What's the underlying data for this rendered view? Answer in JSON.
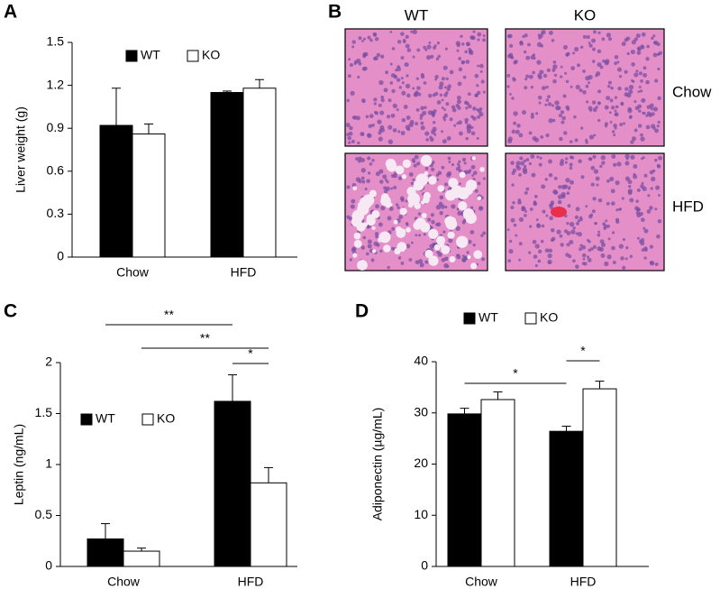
{
  "chart_data": [
    {
      "type": "bar",
      "panel": "A",
      "ylabel": "Liver weight (g)",
      "categories": [
        "Chow",
        "HFD"
      ],
      "series": [
        {
          "name": "WT",
          "color": "#000000",
          "values": [
            0.92,
            1.15
          ],
          "errors": [
            0.26,
            0.01
          ]
        },
        {
          "name": "KO",
          "color": "#ffffff",
          "values": [
            0.86,
            1.18
          ],
          "errors": [
            0.07,
            0.06
          ]
        }
      ],
      "ylim": [
        0,
        1.5
      ],
      "yticks": [
        0,
        0.3,
        0.6,
        0.9,
        1.2,
        1.5
      ],
      "legend": "top"
    },
    {
      "type": "bar",
      "panel": "C",
      "ylabel": "Leptin (ng/mL)",
      "categories": [
        "Chow",
        "HFD"
      ],
      "series": [
        {
          "name": "WT",
          "color": "#000000",
          "values": [
            0.27,
            1.62
          ],
          "errors": [
            0.15,
            0.26
          ]
        },
        {
          "name": "KO",
          "color": "#ffffff",
          "values": [
            0.15,
            0.82
          ],
          "errors": [
            0.03,
            0.15
          ]
        }
      ],
      "ylim": [
        0,
        2
      ],
      "yticks": [
        0,
        0.5,
        1,
        1.5,
        2
      ],
      "legend": "center-left",
      "annotations": [
        {
          "label": "**"
        },
        {
          "label": "**"
        },
        {
          "label": "*"
        }
      ]
    },
    {
      "type": "bar",
      "panel": "D",
      "ylabel": "Adiponectin (µg/mL)",
      "categories": [
        "Chow",
        "HFD"
      ],
      "series": [
        {
          "name": "WT",
          "color": "#000000",
          "values": [
            29.8,
            26.4
          ],
          "errors": [
            1.1,
            1.0
          ]
        },
        {
          "name": "KO",
          "color": "#ffffff",
          "values": [
            32.6,
            34.7
          ],
          "errors": [
            1.5,
            1.5
          ]
        }
      ],
      "ylim": [
        0,
        40
      ],
      "yticks": [
        0,
        10,
        20,
        30,
        40
      ],
      "legend": "top",
      "annotations": [
        {
          "label": "*"
        },
        {
          "label": "*"
        }
      ]
    }
  ],
  "histology": {
    "panel": "B",
    "columns": [
      "WT",
      "KO"
    ],
    "rows": [
      "Chow",
      "HFD"
    ]
  }
}
